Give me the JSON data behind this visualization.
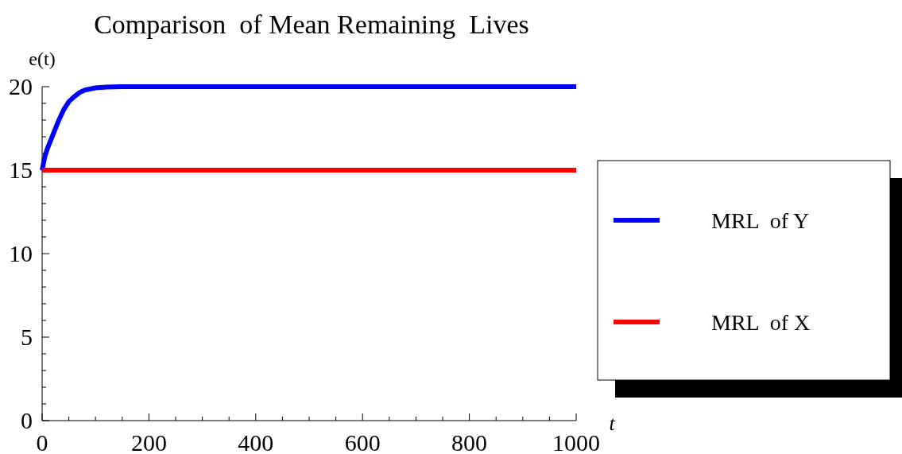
{
  "chart_data": {
    "type": "line",
    "title": "Comparison  of Mean Remaining  Lives",
    "xlabel": "t",
    "ylabel": "e(t)",
    "xlim": [
      0,
      1000
    ],
    "ylim": [
      0,
      20
    ],
    "xticks": [
      0,
      200,
      400,
      600,
      800,
      1000
    ],
    "yticks": [
      0,
      5,
      10,
      15,
      20
    ],
    "grid": false,
    "legend": "right",
    "line_style": "solid",
    "marker": "none",
    "series": [
      {
        "name": "MRL  of Y",
        "color": "#0000ff",
        "x": [
          0,
          5,
          10,
          20,
          30,
          40,
          50,
          60,
          70,
          80,
          100,
          120,
          150,
          1000
        ],
        "values": [
          15,
          15.8,
          16.3,
          17.1,
          17.9,
          18.6,
          19.1,
          19.4,
          19.65,
          19.8,
          19.93,
          19.98,
          20,
          20
        ]
      },
      {
        "name": "MRL  of X",
        "color": "#ff0000",
        "x": [
          0,
          1000
        ],
        "values": [
          15,
          15
        ]
      }
    ]
  }
}
